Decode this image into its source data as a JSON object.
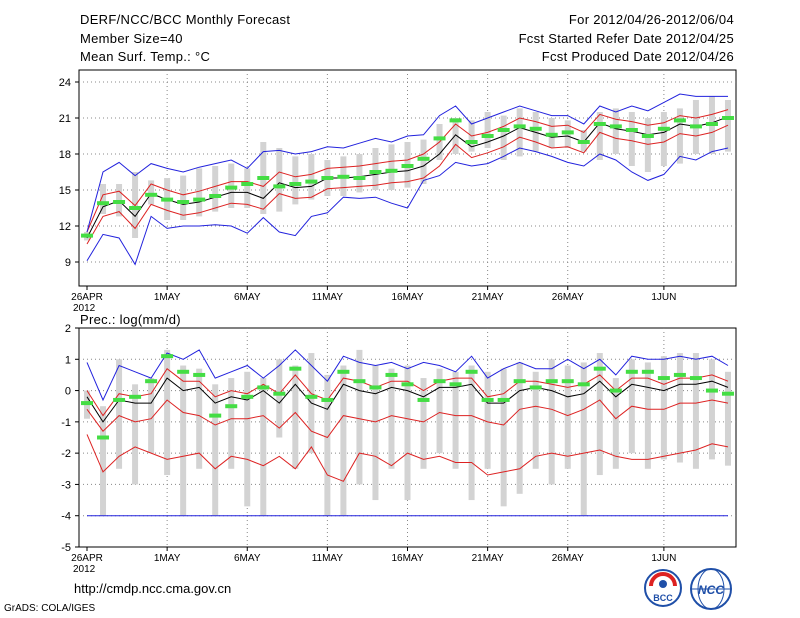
{
  "header": {
    "title": "DERF/NCC/BCC Monthly Forecast",
    "member_size": "Member Size=40",
    "variable": "Mean Surf. Temp.: °C",
    "period": "For 2012/04/26-2012/06/04",
    "start_date": "Fcst Started Refer Date 2012/04/25",
    "produced_date": "Fcst Produced Date 2012/04/26"
  },
  "panel2_label": "Prec.: log(mm/d)",
  "footer": {
    "url": "http://cmdp.ncc.cma.gov.cn",
    "credit": "GrADS: COLA/IGES"
  },
  "logos": {
    "bcc": "BCC",
    "ncc": "NCC"
  },
  "colors": {
    "ensemble_bar": "#d3d3d3",
    "observed": "#44dd44",
    "mean": "#000000",
    "spread": "#dd2222",
    "envelope": "#2222dd",
    "grid": "#888888"
  },
  "chart_data": [
    {
      "type": "line",
      "title": "Mean Surf. Temp.: °C",
      "xlabel": "",
      "ylabel": "",
      "x_tick_labels": [
        "26APR\n2012",
        "1MAY",
        "6MAY",
        "11MAY",
        "16MAY",
        "21MAY",
        "26MAY",
        "1JUN"
      ],
      "x_tick_index": [
        0,
        5,
        10,
        15,
        20,
        25,
        30,
        36
      ],
      "ylim": [
        7,
        25
      ],
      "yticks": [
        9,
        12,
        15,
        18,
        21,
        24
      ],
      "grid": true,
      "bars": {
        "low": [
          10.8,
          13.0,
          12.8,
          11.0,
          13.8,
          12.5,
          12.5,
          12.8,
          13.2,
          13.5,
          13.5,
          13.0,
          13.2,
          13.8,
          14.2,
          14.5,
          14.5,
          14.8,
          15.0,
          15.0,
          15.2,
          15.5,
          17.5,
          18.0,
          18.2,
          18.5,
          17.5,
          17.8,
          18.2,
          18.5,
          18.5,
          18.2,
          17.5,
          18.0,
          17.0,
          16.5,
          17.0,
          17.2,
          18.0,
          18.0,
          18.2
        ],
        "high": [
          11.5,
          15.5,
          15.5,
          16.5,
          15.8,
          16.0,
          16.2,
          16.8,
          17.0,
          17.2,
          16.8,
          19.0,
          18.5,
          17.8,
          18.0,
          17.5,
          17.8,
          18.0,
          18.5,
          18.8,
          19.0,
          19.2,
          20.5,
          21.0,
          20.8,
          21.5,
          21.2,
          21.8,
          21.5,
          21.0,
          20.8,
          20.0,
          21.5,
          21.8,
          21.5,
          21.0,
          21.5,
          21.8,
          22.5,
          22.8,
          22.5
        ]
      },
      "series": [
        {
          "name": "observed",
          "style": "marks",
          "values": [
            11.2,
            13.9,
            14.0,
            13.5,
            14.6,
            14.2,
            14.0,
            14.2,
            14.5,
            15.2,
            15.5,
            16.0,
            15.3,
            15.5,
            15.7,
            16.0,
            16.1,
            16.0,
            16.5,
            16.6,
            17.0,
            17.6,
            19.3,
            20.8,
            19.0,
            19.5,
            20.0,
            20.3,
            20.1,
            19.6,
            19.8,
            19.0,
            20.5,
            20.3,
            20.0,
            19.5,
            20.1,
            20.8,
            20.3,
            20.5,
            21.0
          ]
        },
        {
          "name": "ensemble mean",
          "style": "line",
          "values": [
            11.0,
            13.6,
            14.1,
            12.8,
            14.7,
            14.2,
            13.8,
            14.0,
            14.4,
            14.8,
            14.8,
            14.3,
            15.6,
            15.2,
            15.3,
            16.0,
            16.0,
            16.1,
            16.3,
            16.5,
            16.6,
            17.0,
            18.0,
            19.6,
            18.6,
            19.0,
            19.5,
            20.2,
            19.8,
            19.4,
            19.5,
            19.0,
            20.6,
            20.1,
            19.9,
            19.6,
            19.8,
            20.5,
            20.3,
            20.6,
            21.1
          ]
        },
        {
          "name": "upper spread",
          "style": "line",
          "values": [
            11.5,
            14.6,
            14.9,
            13.7,
            15.5,
            15.0,
            14.6,
            14.9,
            15.3,
            15.7,
            15.7,
            15.3,
            16.5,
            16.1,
            16.3,
            16.8,
            16.9,
            17.0,
            17.2,
            17.4,
            17.5,
            18.0,
            19.0,
            20.5,
            19.5,
            19.8,
            20.3,
            21.0,
            20.7,
            20.3,
            20.4,
            19.8,
            21.3,
            20.9,
            20.7,
            20.4,
            20.6,
            21.2,
            21.0,
            21.3,
            21.7
          ]
        },
        {
          "name": "lower spread",
          "style": "line",
          "values": [
            10.5,
            12.8,
            13.2,
            11.8,
            13.8,
            13.3,
            12.9,
            13.1,
            13.5,
            13.9,
            13.8,
            13.4,
            14.7,
            14.3,
            14.4,
            15.1,
            15.2,
            15.3,
            15.4,
            15.6,
            15.7,
            16.0,
            17.0,
            18.8,
            17.7,
            18.1,
            18.6,
            19.4,
            19.0,
            18.5,
            18.6,
            18.1,
            19.8,
            19.3,
            19.1,
            18.8,
            19.0,
            19.7,
            19.5,
            19.8,
            20.4
          ]
        },
        {
          "name": "max envelope",
          "style": "line",
          "values": [
            11.5,
            16.5,
            17.3,
            16.2,
            17.2,
            16.8,
            16.5,
            16.9,
            17.2,
            17.5,
            16.8,
            18.2,
            18.3,
            18.0,
            18.2,
            18.6,
            18.5,
            18.9,
            19.3,
            19.0,
            19.5,
            19.6,
            21.2,
            22.0,
            20.5,
            21.0,
            21.5,
            22.0,
            21.6,
            21.2,
            21.2,
            20.5,
            22.0,
            21.5,
            22.0,
            21.6,
            22.3,
            23.0,
            22.8,
            22.8,
            22.8
          ]
        },
        {
          "name": "min envelope",
          "style": "line",
          "values": [
            9.1,
            11.3,
            11.0,
            8.8,
            12.8,
            11.8,
            12.0,
            12.0,
            12.1,
            12.0,
            11.4,
            12.7,
            11.5,
            11.2,
            12.8,
            13.1,
            14.4,
            14.3,
            14.4,
            13.9,
            13.5,
            15.8,
            16.2,
            17.3,
            17.0,
            17.2,
            17.8,
            18.5,
            18.2,
            17.8,
            17.3,
            17.0,
            18.0,
            17.5,
            16.5,
            15.8,
            16.3,
            17.8,
            17.5,
            18.2,
            18.5
          ]
        }
      ]
    },
    {
      "type": "line",
      "title": "Prec.: log(mm/d)",
      "xlabel": "",
      "ylabel": "",
      "x_tick_labels": [
        "26APR\n2012",
        "1MAY",
        "6MAY",
        "11MAY",
        "16MAY",
        "21MAY",
        "26MAY",
        "1JUN"
      ],
      "x_tick_index": [
        0,
        5,
        10,
        15,
        20,
        25,
        30,
        36
      ],
      "ylim": [
        -5,
        2
      ],
      "yticks": [
        -5,
        -4,
        -3,
        -2,
        -1,
        0,
        1,
        2
      ],
      "grid": true,
      "bars": {
        "low": [
          -0.9,
          -4.0,
          -2.5,
          -3.0,
          -2.0,
          -2.7,
          -4.0,
          -2.5,
          -4.0,
          -2.5,
          -3.7,
          -4.0,
          -1.5,
          -2.5,
          -2.0,
          -4.0,
          -4.0,
          -3.0,
          -3.5,
          -2.5,
          -3.5,
          -2.5,
          -2.0,
          -2.5,
          -3.5,
          -2.5,
          -3.7,
          -3.3,
          -2.5,
          -3.0,
          -2.5,
          -4.0,
          -2.7,
          -2.5,
          -2.0,
          -2.5,
          -2.2,
          -2.3,
          -2.5,
          -2.2,
          -2.4
        ],
        "high": [
          0.0,
          -0.5,
          1.0,
          0.2,
          0.4,
          1.3,
          0.8,
          0.7,
          0.2,
          0.4,
          0.6,
          0.4,
          1.0,
          0.8,
          1.2,
          0.5,
          0.8,
          1.3,
          0.8,
          0.7,
          0.8,
          0.4,
          0.7,
          0.6,
          0.8,
          0.6,
          0.7,
          0.9,
          0.6,
          1.0,
          0.8,
          0.9,
          1.2,
          0.4,
          1.0,
          0.9,
          1.1,
          1.2,
          1.2,
          1.0,
          0.6
        ]
      },
      "series": [
        {
          "name": "observed",
          "style": "marks",
          "values": [
            -0.4,
            -1.5,
            -0.3,
            -0.2,
            0.3,
            1.1,
            0.6,
            0.5,
            -0.8,
            -0.5,
            -0.2,
            0.1,
            -0.1,
            0.7,
            -0.2,
            -0.3,
            0.6,
            0.3,
            0.1,
            0.5,
            0.2,
            -0.3,
            0.3,
            0.2,
            0.6,
            -0.3,
            -0.3,
            0.3,
            0.1,
            0.3,
            0.3,
            0.2,
            0.7,
            0.0,
            0.6,
            0.6,
            0.4,
            0.5,
            0.4,
            0.0,
            -0.1
          ]
        },
        {
          "name": "ensemble mean",
          "style": "line",
          "values": [
            -0.2,
            -1.0,
            -0.3,
            -0.4,
            -0.4,
            0.4,
            0.0,
            0.1,
            -0.4,
            -0.2,
            -0.3,
            0.0,
            -0.4,
            0.2,
            -0.4,
            -0.6,
            0.2,
            0.0,
            -0.1,
            0.1,
            0.0,
            -0.2,
            0.1,
            0.1,
            0.2,
            -0.4,
            -0.4,
            0.0,
            0.1,
            0.0,
            -0.2,
            -0.1,
            0.3,
            -0.2,
            0.2,
            0.1,
            0.0,
            0.2,
            0.2,
            0.3,
            0.1
          ]
        },
        {
          "name": "upper spread",
          "style": "line",
          "values": [
            0.0,
            -0.8,
            -0.1,
            -0.2,
            -0.1,
            0.7,
            0.3,
            0.3,
            -0.2,
            0.0,
            -0.1,
            0.2,
            -0.1,
            0.5,
            -0.1,
            -0.3,
            0.4,
            0.3,
            0.1,
            0.3,
            0.3,
            0.0,
            0.3,
            0.4,
            0.4,
            -0.2,
            -0.1,
            0.3,
            0.3,
            0.2,
            0.1,
            0.2,
            0.5,
            0.0,
            0.4,
            0.4,
            0.2,
            0.4,
            0.4,
            0.5,
            0.3
          ]
        },
        {
          "name": "lower spread",
          "style": "line",
          "values": [
            -0.6,
            -1.3,
            -0.8,
            -1.0,
            -0.9,
            -0.3,
            -0.7,
            -0.8,
            -1.1,
            -0.9,
            -0.9,
            -0.8,
            -1.2,
            -0.7,
            -1.3,
            -1.5,
            -0.8,
            -0.9,
            -1.0,
            -0.8,
            -0.9,
            -1.0,
            -0.7,
            -0.8,
            -0.8,
            -1.0,
            -1.1,
            -0.6,
            -0.5,
            -0.6,
            -0.8,
            -0.6,
            -0.3,
            -0.9,
            -0.5,
            -0.6,
            -0.6,
            -0.4,
            -0.4,
            -0.3,
            -0.4
          ]
        },
        {
          "name": "10th percentile",
          "style": "line",
          "values": [
            -1.4,
            -2.6,
            -2.1,
            -1.8,
            -2.0,
            -2.2,
            -2.1,
            -2.0,
            -2.5,
            -2.1,
            -2.2,
            -2.4,
            -2.1,
            -2.5,
            -1.8,
            -2.7,
            -2.9,
            -2.0,
            -2.1,
            -2.4,
            -2.0,
            -2.2,
            -2.1,
            -2.3,
            -2.3,
            -2.7,
            -2.6,
            -2.5,
            -2.1,
            -2.0,
            -2.1,
            -2.0,
            -1.9,
            -2.1,
            -2.2,
            -2.2,
            -2.1,
            -2.0,
            -1.9,
            -1.7,
            -1.8
          ]
        },
        {
          "name": "max envelope",
          "style": "line",
          "values": [
            0.9,
            -0.3,
            0.8,
            0.6,
            0.4,
            1.2,
            1.0,
            1.3,
            0.4,
            0.6,
            0.8,
            0.4,
            0.8,
            1.3,
            0.8,
            0.3,
            1.1,
            0.9,
            0.8,
            0.9,
            0.7,
            0.9,
            0.8,
            0.6,
            1.1,
            0.4,
            0.7,
            0.9,
            0.7,
            0.7,
            1.0,
            0.7,
            1.0,
            0.5,
            1.1,
            1.0,
            1.0,
            1.1,
            1.0,
            1.1,
            0.8
          ]
        },
        {
          "name": "lower bound",
          "style": "line",
          "values": [
            -4.0,
            -4.0,
            -4.0,
            -4.0,
            -4.0,
            -4.0,
            -4.0,
            -4.0,
            -4.0,
            -4.0,
            -4.0,
            -4.0,
            -4.0,
            -4.0,
            -4.0,
            -4.0,
            -4.0,
            -4.0,
            -4.0,
            -4.0,
            -4.0,
            -4.0,
            -4.0,
            -4.0,
            -4.0,
            -4.0,
            -4.0,
            -4.0,
            -4.0,
            -4.0,
            -4.0,
            -4.0,
            -4.0,
            -4.0,
            -4.0,
            -4.0,
            -4.0,
            -4.0,
            -4.0,
            -4.0,
            -4.0
          ]
        }
      ]
    }
  ]
}
